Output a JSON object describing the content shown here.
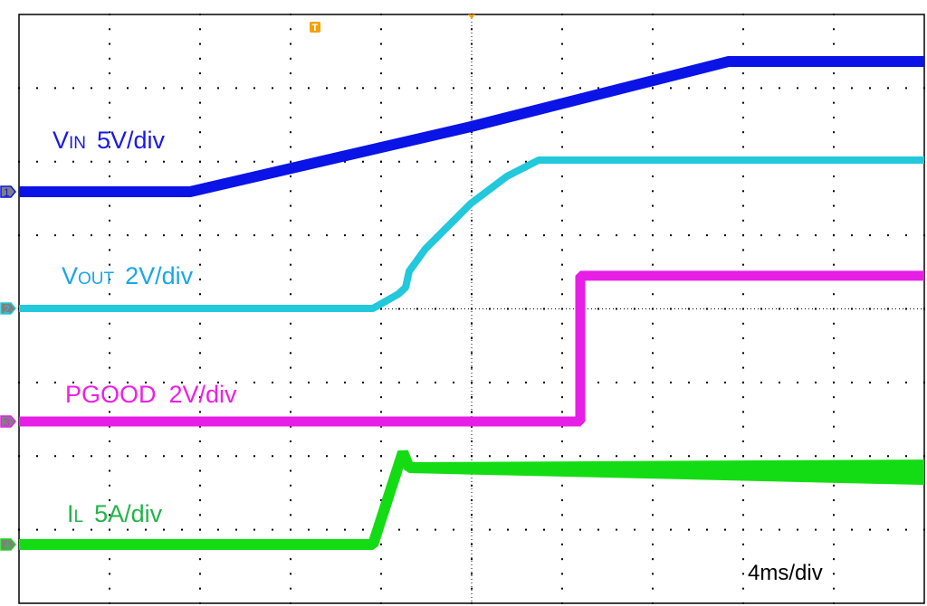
{
  "chart_data": {
    "type": "line",
    "xlabel": "",
    "ylabel": "",
    "x_unit": "ms",
    "timebase": "4ms/div",
    "xlim": [
      0,
      40
    ],
    "grid": true,
    "legend": "inline",
    "series": [
      {
        "channel": "1",
        "name": "V",
        "name_sub": "IN",
        "scale": "5V/div",
        "color": "#0a14e6",
        "points": [
          [
            0,
            0
          ],
          [
            7.56,
            0
          ],
          [
            19.96,
            4.42
          ],
          [
            31.36,
            8.85
          ],
          [
            40,
            8.85
          ]
        ]
      },
      {
        "channel": "2",
        "name": "V",
        "name_sub": "OUT",
        "scale": "2V/div",
        "color": "#22c8dc",
        "points": [
          [
            0,
            0
          ],
          [
            15.64,
            0
          ],
          [
            16.76,
            0.39
          ],
          [
            17.08,
            0.57
          ],
          [
            17.24,
            1.01
          ],
          [
            17.96,
            1.62
          ],
          [
            19.96,
            2.85
          ],
          [
            21.56,
            3.59
          ],
          [
            22.96,
            4.03
          ],
          [
            40,
            4.03
          ]
        ]
      },
      {
        "channel": "3",
        "name": "PGOOD",
        "name_sub": "",
        "scale": "2V/div",
        "color": "#e61ee6",
        "points": [
          [
            0,
            0
          ],
          [
            24.8,
            0
          ],
          [
            24.8,
            3.96
          ],
          [
            40,
            3.96
          ]
        ]
      },
      {
        "channel": "4",
        "name": "I",
        "name_sub": "L",
        "scale": "5A/div",
        "color": "#14dc14",
        "points": [
          [
            0,
            0
          ],
          [
            15.64,
            0
          ],
          [
            16.96,
            6.27
          ],
          [
            17.24,
            5.22
          ],
          [
            40,
            4.91
          ]
        ]
      }
    ],
    "trigger_marker": "T",
    "trigger_color": "#f5a000"
  }
}
